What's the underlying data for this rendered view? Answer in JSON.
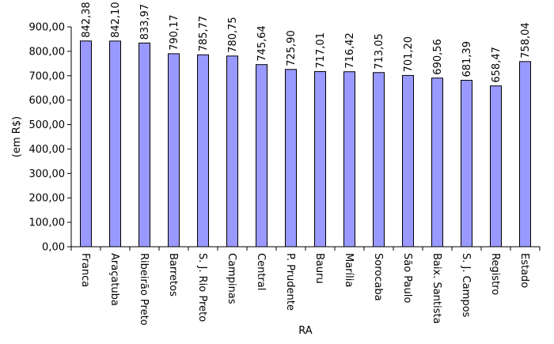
{
  "chart_data": {
    "type": "bar",
    "title": "",
    "xlabel": "RA",
    "ylabel": "(em R$)",
    "ylim": [
      0,
      900
    ],
    "y_ticks": [
      0,
      100,
      200,
      300,
      400,
      500,
      600,
      700,
      800,
      900
    ],
    "y_tick_labels": [
      "0,00",
      "100,00",
      "200,00",
      "300,00",
      "400,00",
      "500,00",
      "600,00",
      "700,00",
      "800,00",
      "900,00"
    ],
    "grid": false,
    "legend": "none",
    "bar_color": "#9999FF",
    "categories": [
      "Franca",
      "Araçatuba",
      "Ribeirão Preto",
      "Barretos",
      "S. J. Rio Preto",
      "Campinas",
      "Central",
      "P. Prudente",
      "Bauru",
      "Marília",
      "Sorocaba",
      "São Paulo",
      "Baix. Santista",
      "S. J. Campos",
      "Registro",
      "Estado"
    ],
    "values": [
      842.38,
      842.1,
      833.97,
      790.17,
      785.77,
      780.75,
      745.64,
      725.9,
      717.01,
      716.42,
      713.05,
      701.2,
      690.56,
      681.39,
      658.47,
      758.04
    ],
    "value_labels": [
      "842,38",
      "842,10",
      "833,97",
      "790,17",
      "785,77",
      "780,75",
      "745,64",
      "725,90",
      "717,01",
      "716,42",
      "713,05",
      "701,20",
      "690,56",
      "681,39",
      "658,47",
      "758,04"
    ]
  }
}
